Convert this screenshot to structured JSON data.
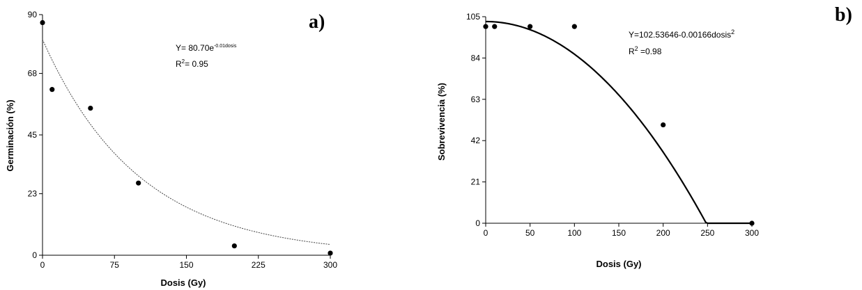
{
  "chart_data": [
    {
      "type": "scatter",
      "panel_label": "a)",
      "xlabel": "Dosis (Gy)",
      "ylabel": "Germinación (%)",
      "xlim": [
        0,
        300
      ],
      "ylim": [
        0,
        90
      ],
      "xticks": [
        "0",
        "75",
        "150",
        "225",
        "300"
      ],
      "yticks": [
        "0",
        "23",
        "45",
        "68",
        "90"
      ],
      "x": [
        0,
        10,
        50,
        100,
        200,
        300
      ],
      "y": [
        87,
        62,
        55,
        27,
        3.5,
        0.8
      ],
      "fit": {
        "model": "exponential",
        "a": 80.7,
        "b": -0.01,
        "style": "dashed"
      },
      "equation": {
        "prefix": "Y= 80.70e",
        "superscript": "-0.01dosis"
      },
      "r2": {
        "base": "R",
        "sup": "2",
        "value": "= 0.95"
      }
    },
    {
      "type": "scatter",
      "panel_label": "b)",
      "xlabel": "Dosis (Gy)",
      "ylabel": "Sobrevivencia (%)",
      "xlim": [
        0,
        300
      ],
      "ylim": [
        0,
        105
      ],
      "xticks": [
        "0",
        "50",
        "100",
        "150",
        "200",
        "250",
        "300"
      ],
      "yticks": [
        "0",
        "21",
        "42",
        "63",
        "84",
        "105"
      ],
      "x": [
        0,
        10,
        50,
        100,
        200,
        300
      ],
      "y": [
        100,
        100,
        100,
        100,
        50,
        0
      ],
      "fit": {
        "model": "quadratic",
        "a": 102.53646,
        "c": -0.00166,
        "style": "solid"
      },
      "equation": {
        "prefix": "Y=102.53646-0.00166dosis",
        "superscript": "2"
      },
      "r2": {
        "base": "R",
        "sup": "2",
        "value": " =0.98"
      }
    }
  ]
}
